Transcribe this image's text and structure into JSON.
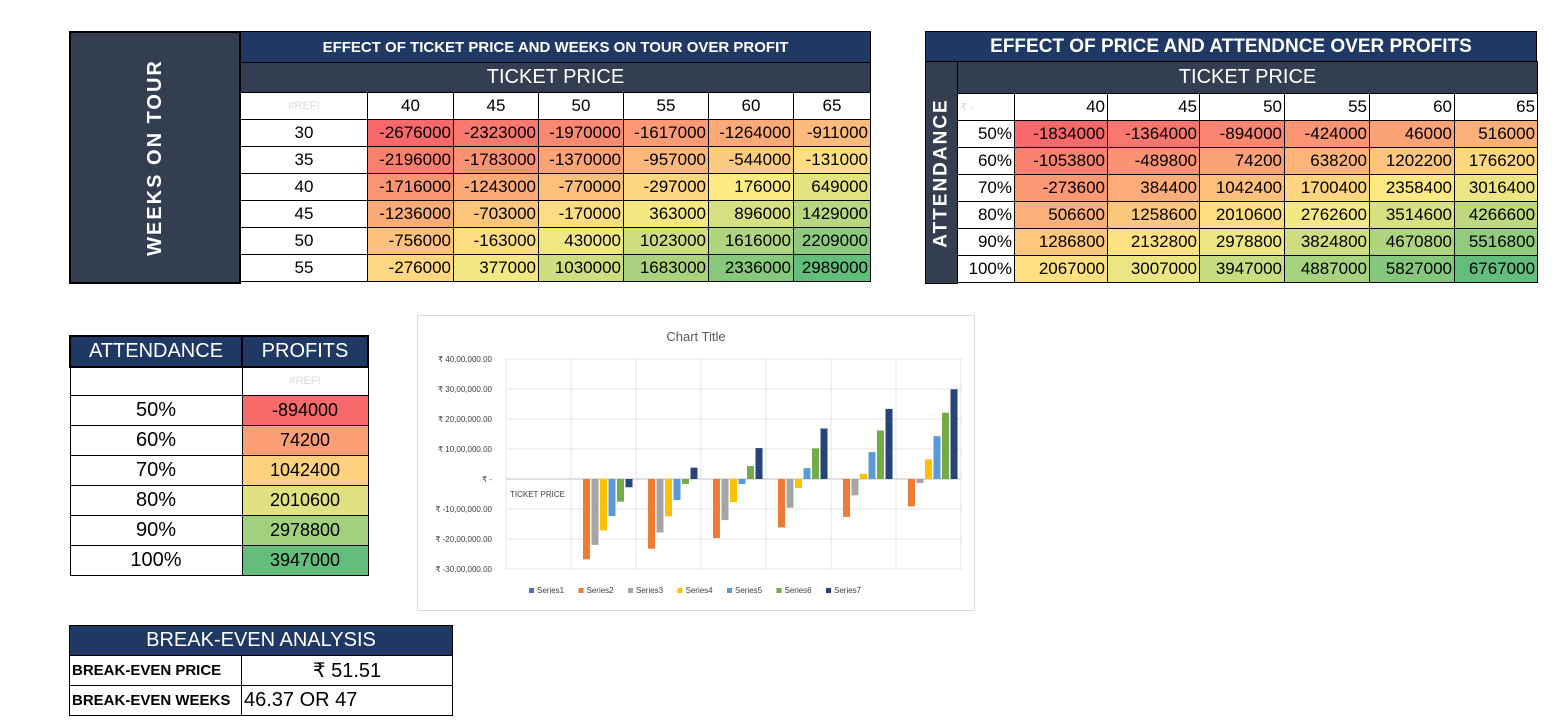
{
  "table1": {
    "title": "EFFECT OF TICKET PRICE AND WEEKS ON TOUR OVER PROFIT",
    "side_label": "WEEKS ON TOUR",
    "sub_header": "TICKET PRICE",
    "corner": "#REF!",
    "columns": [
      "40",
      "45",
      "50",
      "55",
      "60",
      "65"
    ],
    "rows": [
      {
        "label": "30",
        "values": [
          "-2676000",
          "-2323000",
          "-1970000",
          "-1617000",
          "-1264000",
          "-911000"
        ]
      },
      {
        "label": "35",
        "values": [
          "-2196000",
          "-1783000",
          "-1370000",
          "-957000",
          "-544000",
          "-131000"
        ]
      },
      {
        "label": "40",
        "values": [
          "-1716000",
          "-1243000",
          "-770000",
          "-297000",
          "176000",
          "649000"
        ]
      },
      {
        "label": "45",
        "values": [
          "-1236000",
          "-703000",
          "-170000",
          "363000",
          "896000",
          "1429000"
        ]
      },
      {
        "label": "50",
        "values": [
          "-756000",
          "-163000",
          "430000",
          "1023000",
          "1616000",
          "2209000"
        ]
      },
      {
        "label": "55",
        "values": [
          "-276000",
          "377000",
          "1030000",
          "1683000",
          "2336000",
          "2989000"
        ]
      }
    ]
  },
  "table2": {
    "title": "EFFECT OF PRICE AND ATTENDNCE OVER PROFITS",
    "side_label": "ATTENDANCE",
    "sub_header": "TICKET PRICE",
    "corner": "₹ -",
    "columns": [
      "40",
      "45",
      "50",
      "55",
      "60",
      "65"
    ],
    "rows": [
      {
        "label": "50%",
        "values": [
          "-1834000",
          "-1364000",
          "-894000",
          "-424000",
          "46000",
          "516000"
        ]
      },
      {
        "label": "60%",
        "values": [
          "-1053800",
          "-489800",
          "74200",
          "638200",
          "1202200",
          "1766200"
        ]
      },
      {
        "label": "70%",
        "values": [
          "-273600",
          "384400",
          "1042400",
          "1700400",
          "2358400",
          "3016400"
        ]
      },
      {
        "label": "80%",
        "values": [
          "506600",
          "1258600",
          "2010600",
          "2762600",
          "3514600",
          "4266600"
        ]
      },
      {
        "label": "90%",
        "values": [
          "1286800",
          "2132800",
          "2978800",
          "3824800",
          "4670800",
          "5516800"
        ]
      },
      {
        "label": "100%",
        "values": [
          "2067000",
          "3007000",
          "3947000",
          "4887000",
          "5827000",
          "6767000"
        ]
      }
    ]
  },
  "table3": {
    "header_left": "ATTENDANCE",
    "header_right": "PROFITS",
    "ref": "#REF!",
    "rows": [
      {
        "label": "50%",
        "value": "-894000"
      },
      {
        "label": "60%",
        "value": "74200"
      },
      {
        "label": "70%",
        "value": "1042400"
      },
      {
        "label": "80%",
        "value": "2010600"
      },
      {
        "label": "90%",
        "value": "2978800"
      },
      {
        "label": "100%",
        "value": "3947000"
      }
    ]
  },
  "breakeven": {
    "title": "BREAK-EVEN ANALYSIS",
    "price_label": "BREAK-EVEN PRICE",
    "price_value": "₹ 51.51",
    "weeks_label": "BREAK-EVEN WEEKS",
    "weeks_value": "46.37 OR 47"
  },
  "colors": {
    "header_dark": "#1f3864",
    "header_slate": "#333f50",
    "scale_low": "#f8696b",
    "scale_mid": "#ffeb84",
    "scale_high": "#63be7b"
  },
  "chart_data": {
    "type": "bar",
    "title": "Chart Title",
    "category_label": "TICKET PRICE",
    "categories": [
      "",
      "",
      "",
      "",
      "",
      "",
      ""
    ],
    "y_tick_labels": [
      "₹ 40,00,000.00",
      "₹ 30,00,000.00",
      "₹ 20,00,000.00",
      "₹ 10,00,000.00",
      "₹ -",
      "₹ -10,00,000.00",
      "₹ -20,00,000.00",
      "₹ -30,00,000.00"
    ],
    "ylim": [
      -3000000,
      4000000
    ],
    "series": [
      {
        "name": "Series1",
        "color": "#4472c4",
        "values": [
          0,
          0,
          0,
          0,
          0,
          0,
          0
        ]
      },
      {
        "name": "Series2",
        "color": "#ed7d31",
        "values": [
          0,
          -2676000,
          -2323000,
          -1970000,
          -1617000,
          -1264000,
          -911000
        ]
      },
      {
        "name": "Series3",
        "color": "#a5a5a5",
        "values": [
          0,
          -2196000,
          -1783000,
          -1370000,
          -957000,
          -544000,
          -131000
        ]
      },
      {
        "name": "Series4",
        "color": "#ffc000",
        "values": [
          0,
          -1716000,
          -1243000,
          -770000,
          -297000,
          176000,
          649000
        ]
      },
      {
        "name": "Series5",
        "color": "#5b9bd5",
        "values": [
          0,
          -1236000,
          -703000,
          -170000,
          363000,
          896000,
          1429000
        ]
      },
      {
        "name": "Series6",
        "color": "#70ad47",
        "values": [
          0,
          -756000,
          -163000,
          430000,
          1023000,
          1616000,
          2209000
        ]
      },
      {
        "name": "Series7",
        "color": "#264478",
        "values": [
          0,
          -276000,
          377000,
          1030000,
          1683000,
          2336000,
          2989000
        ]
      }
    ]
  }
}
